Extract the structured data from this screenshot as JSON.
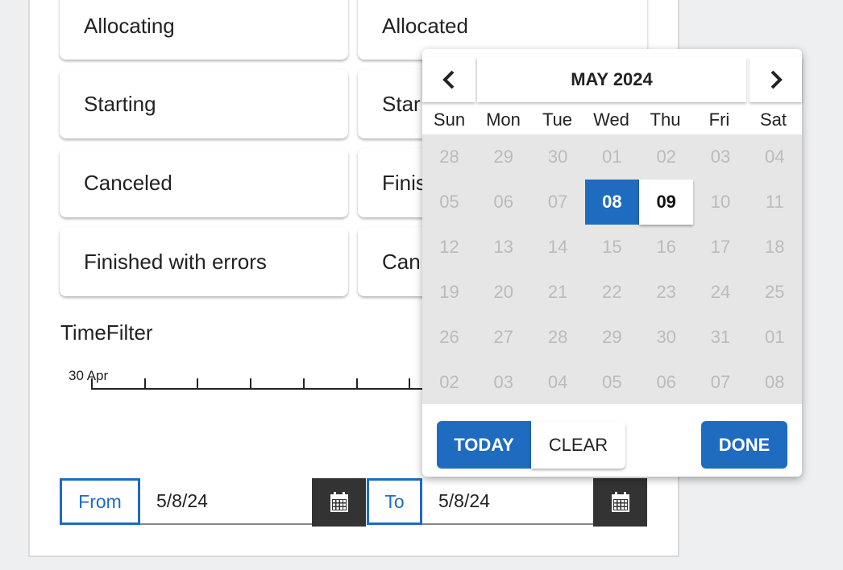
{
  "cards": {
    "left": [
      "Allocating",
      "Starting",
      "Canceled",
      "Finished with errors"
    ],
    "right": [
      "Allocated",
      "Star",
      "Finis",
      "Can"
    ]
  },
  "time_filter": {
    "title": "TimeFilter",
    "axis_label": "30 Apr",
    "tick_count": 7
  },
  "date_range": {
    "from_label": "From",
    "from_value": "5/8/24",
    "to_label": "To",
    "to_value": "5/8/24"
  },
  "calendar": {
    "title": "MAY 2024",
    "weekdays": [
      "Sun",
      "Mon",
      "Tue",
      "Wed",
      "Thu",
      "Fri",
      "Sat"
    ],
    "weeks": [
      [
        "28",
        "29",
        "30",
        "01",
        "02",
        "03",
        "04"
      ],
      [
        "05",
        "06",
        "07",
        "08",
        "09",
        "10",
        "11"
      ],
      [
        "12",
        "13",
        "14",
        "15",
        "16",
        "17",
        "18"
      ],
      [
        "19",
        "20",
        "21",
        "22",
        "23",
        "24",
        "25"
      ],
      [
        "26",
        "27",
        "28",
        "29",
        "30",
        "31",
        "01"
      ],
      [
        "02",
        "03",
        "04",
        "05",
        "06",
        "07",
        "08"
      ]
    ],
    "selected_cell": [
      1,
      3
    ],
    "focused_cell": [
      1,
      4
    ],
    "buttons": {
      "today": "TODAY",
      "clear": "CLEAR",
      "done": "DONE"
    }
  }
}
